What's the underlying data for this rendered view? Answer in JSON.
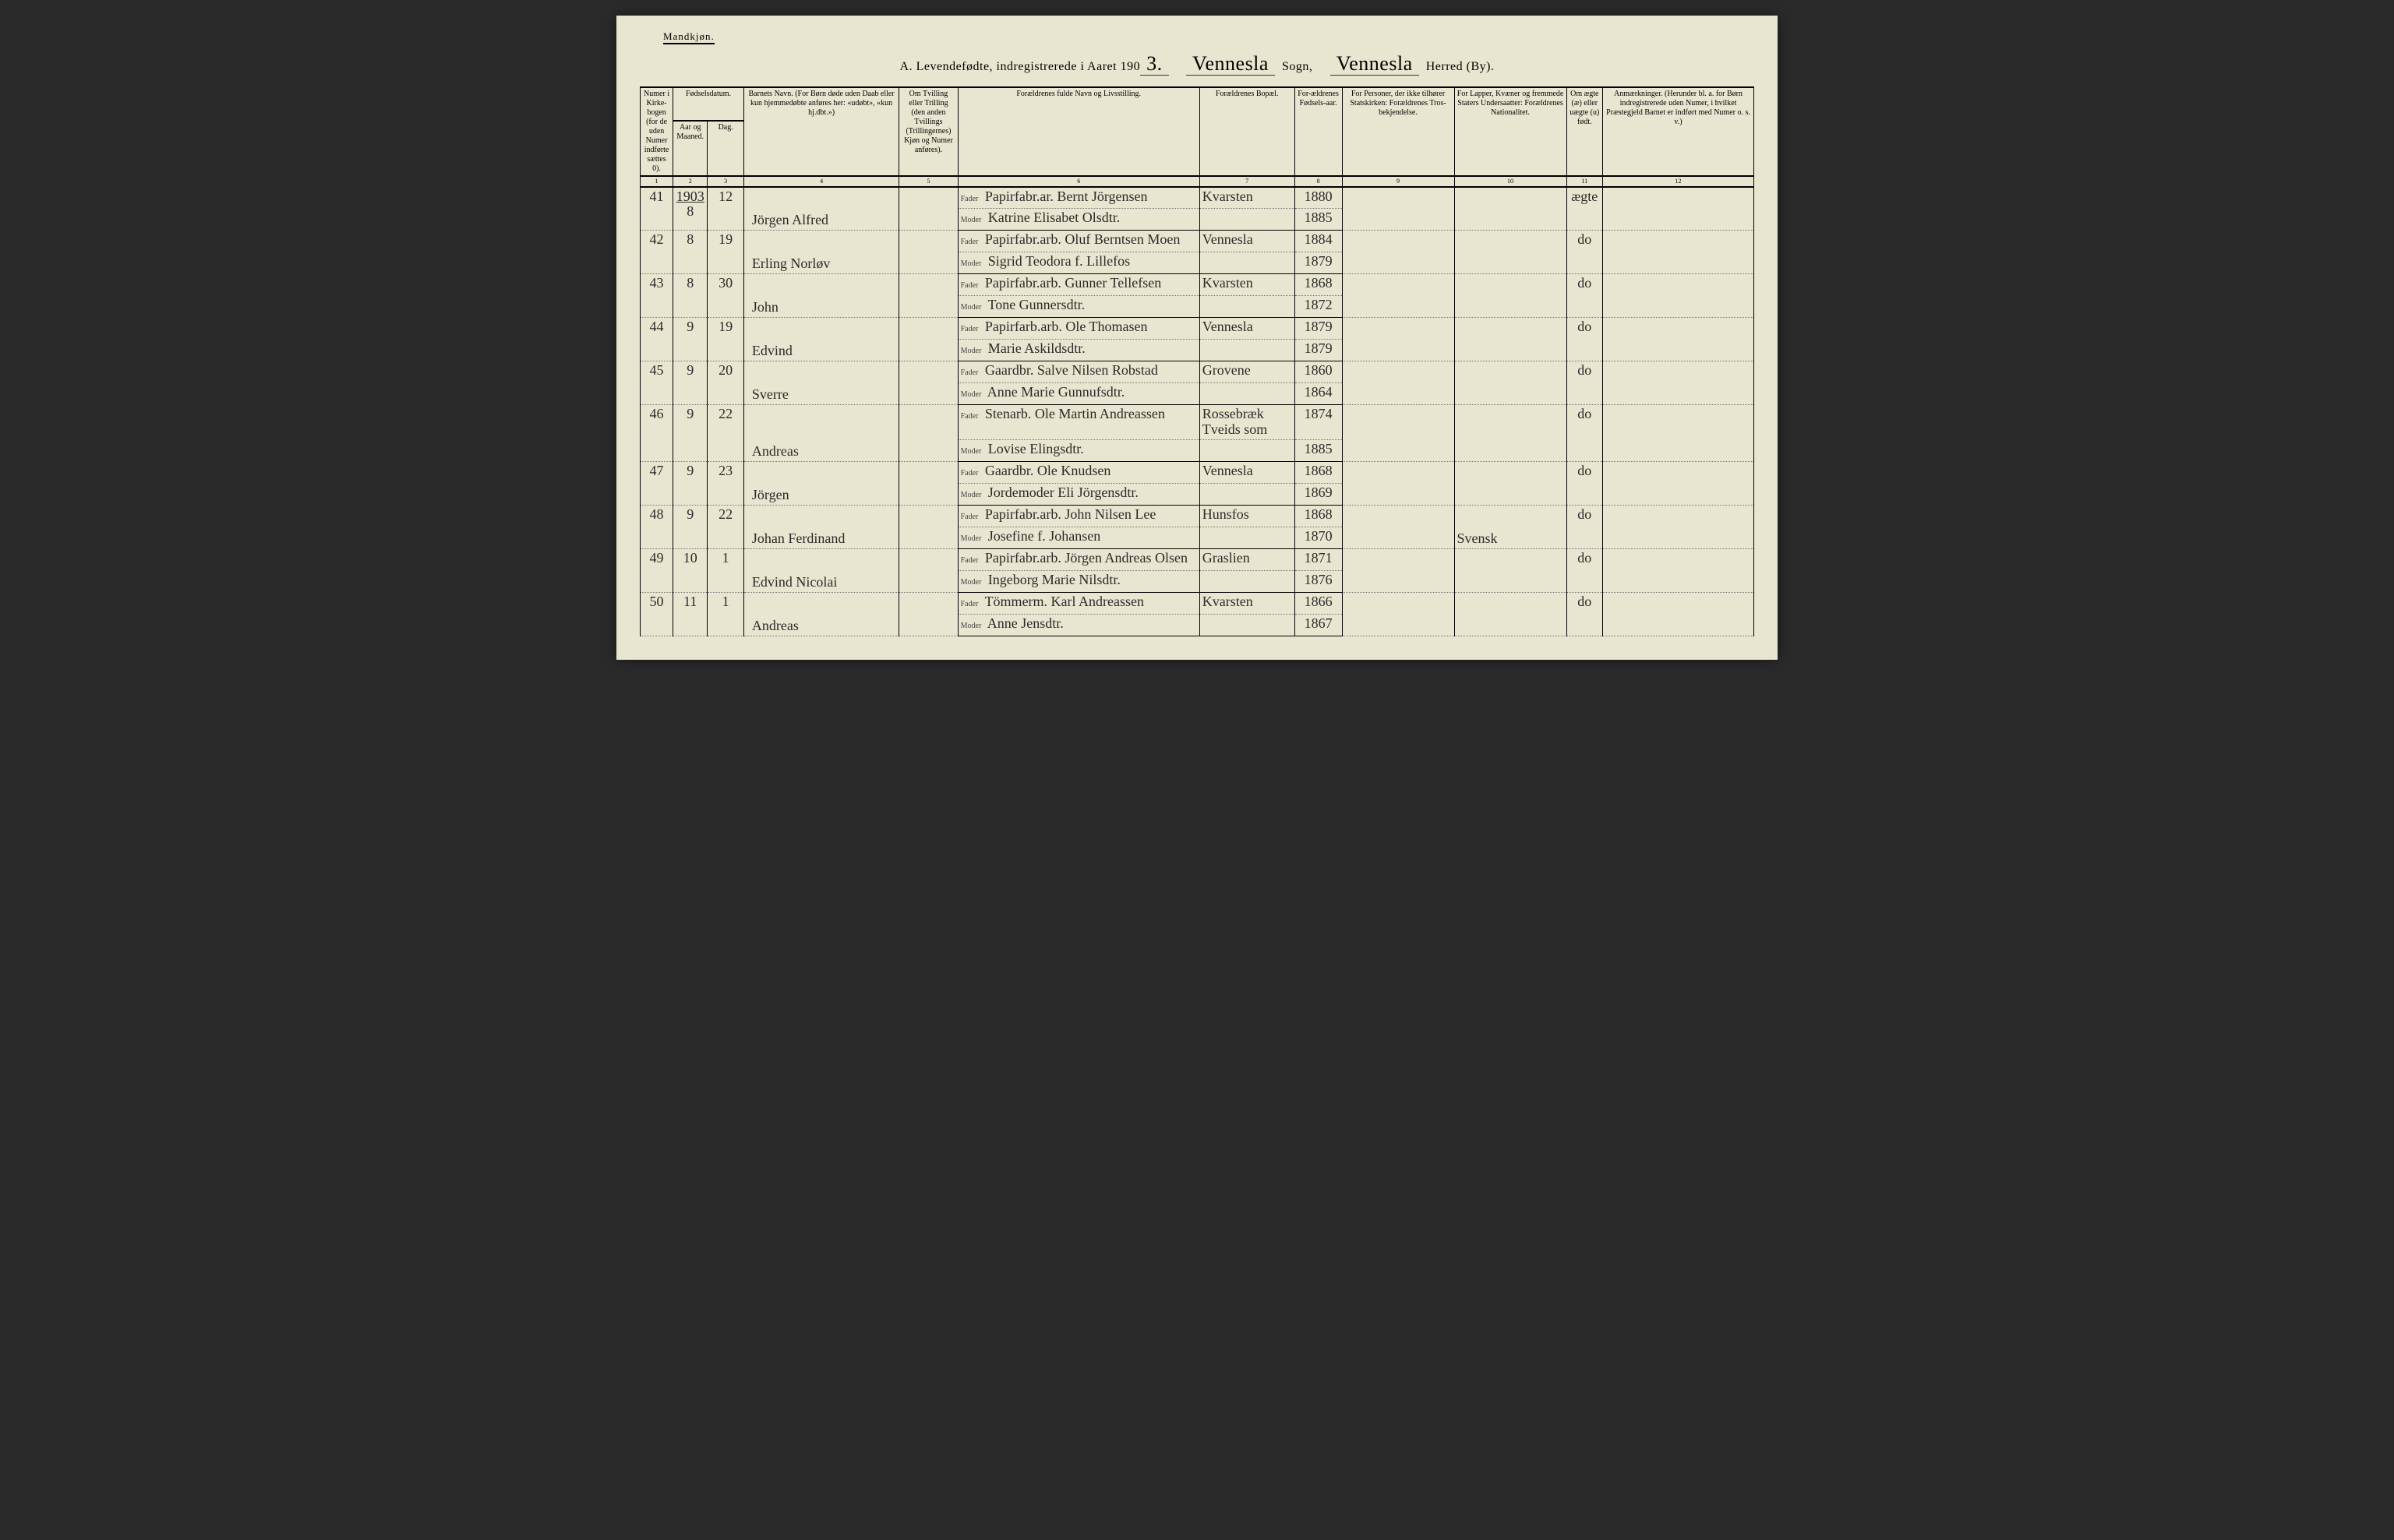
{
  "header": {
    "gender_label": "Mandkjøn.",
    "title_prefix": "A.  Levendefødte, indregistrerede i Aaret 190",
    "year_suffix": "3.",
    "sogn_value": "Vennesla",
    "sogn_label": "Sogn,",
    "herred_value": "Vennesla",
    "herred_label": "Herred (By)."
  },
  "columns": [
    {
      "num": "1",
      "label": "Numer i Kirke-bogen (for de uden Numer indførte sættes 0)."
    },
    {
      "num": "2",
      "label": "Fødselsdatum.",
      "sub1": "Aar og Maaned."
    },
    {
      "num": "3",
      "label": "",
      "sub1": "Dag."
    },
    {
      "num": "4",
      "label": "Barnets Navn.\n(For Børn døde uden Daab eller kun hjemmedøbte anføres her: «udøbt», «kun hj.dbt.»)"
    },
    {
      "num": "5",
      "label": "Om Tvilling eller Trilling (den anden Tvillings (Trillingernes) Kjøn og Numer anføres)."
    },
    {
      "num": "6",
      "label": "Forældrenes fulde Navn og Livsstilling."
    },
    {
      "num": "7",
      "label": "Forældrenes Bopæl."
    },
    {
      "num": "8",
      "label": "For-ældrenes Fødsels-aar."
    },
    {
      "num": "9",
      "label": "For Personer, der ikke tilhører Statskirken: Forældrenes Tros-bekjendelse."
    },
    {
      "num": "10",
      "label": "For Lapper, Kvæner og fremmede Staters Undersaatter: Forældrenes Nationalitet."
    },
    {
      "num": "11",
      "label": "Om ægte (æ) eller uægte (u) født."
    },
    {
      "num": "12",
      "label": "Anmærkninger.\n(Herunder bl. a. for Børn indregistrerede uden Numer, i hvilket Præstegjeld Barnet er indført med Numer o. s. v.)"
    }
  ],
  "year_written": "1903",
  "fader_label": "Fader",
  "moder_label": "Moder",
  "rows": [
    {
      "num": "41",
      "mon": "8",
      "day": "12",
      "name": "Jörgen Alfred",
      "fader": "Papirfabr.ar. Bernt Jörgensen",
      "moder": "Katrine Elisabet Olsdtr.",
      "bop": "Kvarsten",
      "fy": "1880",
      "my": "1885",
      "c10": "",
      "legit": "ægte"
    },
    {
      "num": "42",
      "mon": "8",
      "day": "19",
      "name": "Erling Norløv",
      "fader": "Papirfabr.arb. Oluf Berntsen Moen",
      "moder": "Sigrid Teodora f. Lillefos",
      "bop": "Vennesla",
      "fy": "1884",
      "my": "1879",
      "c10": "",
      "legit": "do"
    },
    {
      "num": "43",
      "mon": "8",
      "day": "30",
      "name": "John",
      "fader": "Papirfabr.arb. Gunner Tellefsen",
      "moder": "Tone Gunnersdtr.",
      "bop": "Kvarsten",
      "fy": "1868",
      "my": "1872",
      "c10": "",
      "legit": "do"
    },
    {
      "num": "44",
      "mon": "9",
      "day": "19",
      "name": "Edvind",
      "fader": "Papirfarb.arb. Ole Thomasen",
      "moder": "Marie Askildsdtr.",
      "bop": "Vennesla",
      "fy": "1879",
      "my": "1879",
      "c10": "",
      "legit": "do"
    },
    {
      "num": "45",
      "mon": "9",
      "day": "20",
      "name": "Sverre",
      "fader": "Gaardbr. Salve Nilsen Robstad",
      "moder": "Anne Marie Gunnufsdtr.",
      "bop": "Grovene",
      "fy": "1860",
      "my": "1864",
      "c10": "",
      "legit": "do"
    },
    {
      "num": "46",
      "mon": "9",
      "day": "22",
      "name": "Andreas",
      "fader": "Stenarb. Ole Martin Andreassen",
      "moder": "Lovise Elingsdtr.",
      "bop": "Rossebræk Tveids som",
      "fy": "1874",
      "my": "1885",
      "c10": "",
      "legit": "do"
    },
    {
      "num": "47",
      "mon": "9",
      "day": "23",
      "name": "Jörgen",
      "fader": "Gaardbr. Ole Knudsen",
      "moder": "Jordemoder Eli Jörgensdtr.",
      "bop": "Vennesla",
      "fy": "1868",
      "my": "1869",
      "c10": "",
      "legit": "do"
    },
    {
      "num": "48",
      "mon": "9",
      "day": "22",
      "name": "Johan Ferdinand",
      "fader": "Papirfabr.arb. John Nilsen Lee",
      "moder": "Josefine f. Johansen",
      "bop": "Hunsfos",
      "fy": "1868",
      "my": "1870",
      "c10": "Svensk",
      "legit": "do"
    },
    {
      "num": "49",
      "mon": "10",
      "day": "1",
      "name": "Edvind Nicolai",
      "fader": "Papirfabr.arb. Jörgen Andreas Olsen",
      "moder": "Ingeborg Marie Nilsdtr.",
      "bop": "Graslien",
      "fy": "1871",
      "my": "1876",
      "c10": "",
      "legit": "do"
    },
    {
      "num": "50",
      "mon": "11",
      "day": "1",
      "name": "Andreas",
      "fader": "Tömmerm. Karl Andreassen",
      "moder": "Anne Jensdtr.",
      "bop": "Kvarsten",
      "fy": "1866",
      "my": "1867",
      "c10": "",
      "legit": "do"
    }
  ]
}
